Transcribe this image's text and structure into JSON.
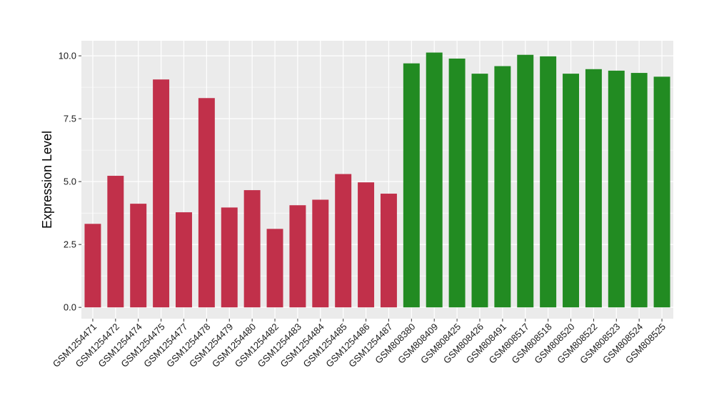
{
  "chart_data": {
    "type": "bar",
    "title": "",
    "xlabel": "",
    "ylabel": "Expression Level",
    "ylim": [
      -0.45,
      10.6
    ],
    "yticks": [
      0.0,
      2.5,
      5.0,
      7.5,
      10.0
    ],
    "ytick_labels": [
      "0.0",
      "2.5",
      "5.0",
      "7.5",
      "10.0"
    ],
    "grid": true,
    "legend": "none",
    "categories": [
      "GSM1254471",
      "GSM1254472",
      "GSM1254474",
      "GSM1254475",
      "GSM1254477",
      "GSM1254478",
      "GSM1254479",
      "GSM1254480",
      "GSM1254482",
      "GSM1254483",
      "GSM1254484",
      "GSM1254485",
      "GSM1254486",
      "GSM1254487",
      "GSM808380",
      "GSM808409",
      "GSM808425",
      "GSM808426",
      "GSM808491",
      "GSM808517",
      "GSM808518",
      "GSM808520",
      "GSM808522",
      "GSM808523",
      "GSM808524",
      "GSM808525"
    ],
    "values": [
      3.32,
      5.23,
      4.12,
      9.06,
      3.78,
      8.32,
      3.97,
      4.66,
      3.12,
      4.06,
      4.28,
      5.3,
      4.97,
      4.52,
      9.7,
      10.13,
      9.89,
      9.29,
      9.59,
      10.04,
      9.98,
      9.29,
      9.47,
      9.41,
      9.32,
      9.17
    ],
    "bar_colors": [
      "#C1304A",
      "#C1304A",
      "#C1304A",
      "#C1304A",
      "#C1304A",
      "#C1304A",
      "#C1304A",
      "#C1304A",
      "#C1304A",
      "#C1304A",
      "#C1304A",
      "#C1304A",
      "#C1304A",
      "#C1304A",
      "#228B22",
      "#228B22",
      "#228B22",
      "#228B22",
      "#228B22",
      "#228B22",
      "#228B22",
      "#228B22",
      "#228B22",
      "#228B22",
      "#228B22",
      "#228B22"
    ],
    "panel_background": "#EBEBEB",
    "grid_color": "#FFFFFF"
  }
}
